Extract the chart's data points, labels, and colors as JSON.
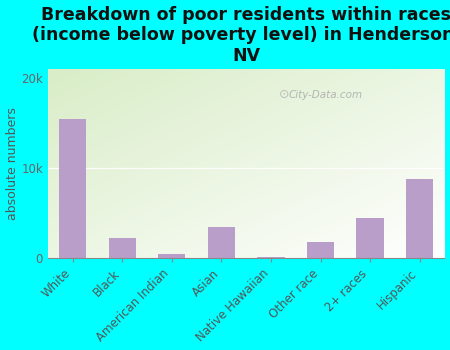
{
  "categories": [
    "White",
    "Black",
    "American Indian",
    "Asian",
    "Native Hawaiian",
    "Other race",
    "2+ races",
    "Hispanic"
  ],
  "values": [
    15500,
    2200,
    500,
    3500,
    150,
    1800,
    4500,
    8800
  ],
  "bar_color": "#b89ec8",
  "background_color": "#00ffff",
  "plot_bg_color_top_left": "#d8eec8",
  "plot_bg_color_bottom_right": "#ffffff",
  "title": "Breakdown of poor residents within races\n(income below poverty level) in Henderson,\nNV",
  "ylabel": "absolute numbers",
  "ylim": [
    0,
    21000
  ],
  "yticks": [
    0,
    10000,
    20000
  ],
  "ytick_labels": [
    "0",
    "10k",
    "20k"
  ],
  "title_fontsize": 12.5,
  "axis_label_fontsize": 9,
  "tick_fontsize": 8.5,
  "watermark": "City-Data.com"
}
